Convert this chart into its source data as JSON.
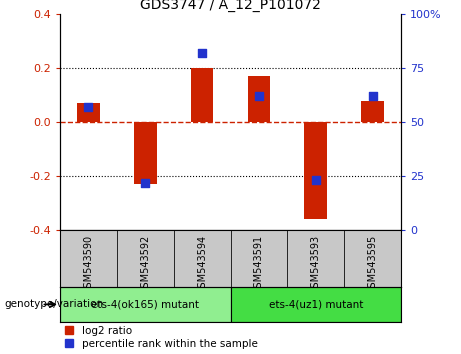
{
  "title": "GDS3747 / A_12_P101072",
  "samples": [
    "GSM543590",
    "GSM543592",
    "GSM543594",
    "GSM543591",
    "GSM543593",
    "GSM543595"
  ],
  "log2_ratio": [
    0.07,
    -0.23,
    0.2,
    0.17,
    -0.36,
    0.08
  ],
  "percentile_rank": [
    57,
    22,
    82,
    62,
    23,
    62
  ],
  "group1_label": "ets-4(ok165) mutant",
  "group2_label": "ets-4(uz1) mutant",
  "ylim_left": [
    -0.4,
    0.4
  ],
  "ylim_right": [
    0,
    100
  ],
  "yticks_left": [
    -0.4,
    -0.2,
    0.0,
    0.2,
    0.4
  ],
  "yticks_right": [
    0,
    25,
    50,
    75,
    100
  ],
  "bar_color": "#cc2200",
  "dot_color": "#2233cc",
  "zero_line_color": "#cc2200",
  "bg_label": "#c8c8c8",
  "bg_group1": "#90ee90",
  "bg_group2": "#44dd44",
  "legend_log2": "log2 ratio",
  "legend_pct": "percentile rank within the sample",
  "genotype_label": "genotype/variation"
}
